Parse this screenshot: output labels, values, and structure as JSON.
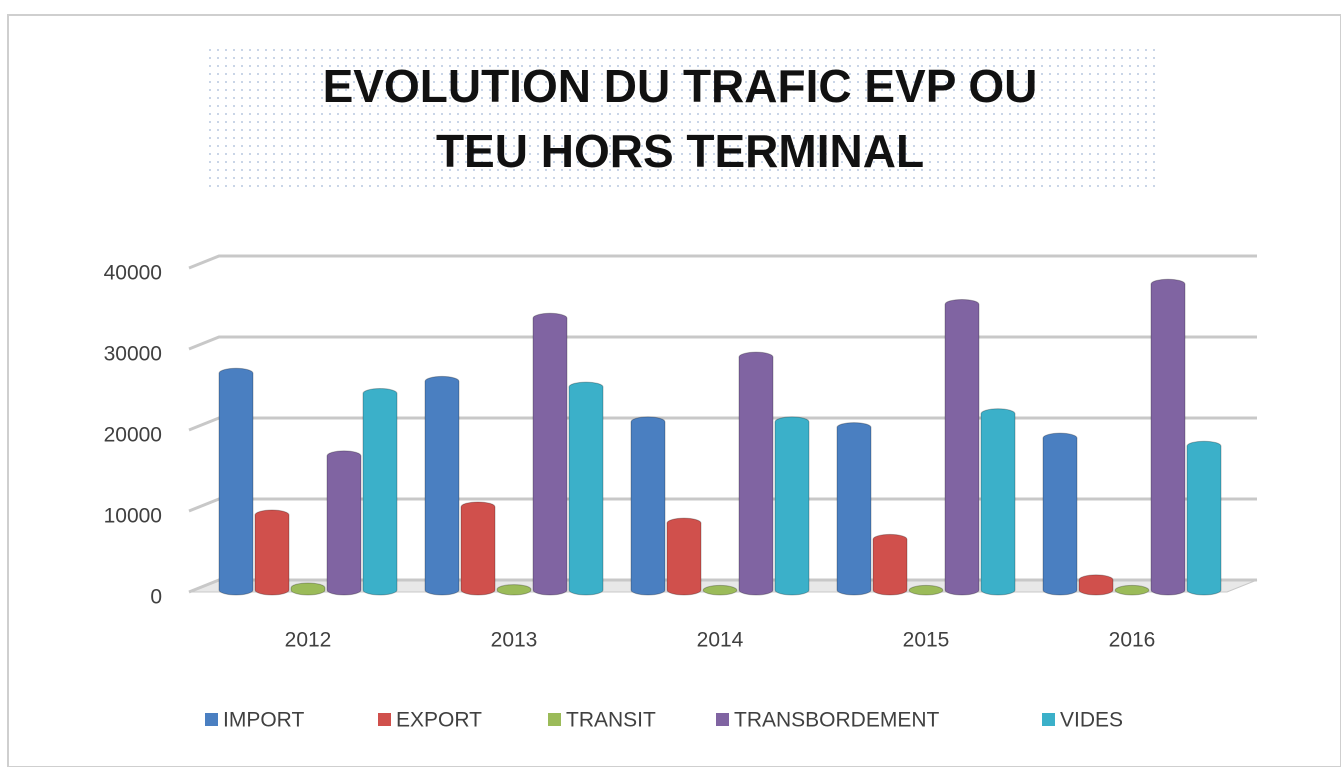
{
  "chart_data": {
    "type": "bar",
    "title": [
      "EVOLUTION DU TRAFIC EVP OU",
      "TEU HORS TERMINAL"
    ],
    "categories": [
      "2012",
      "2013",
      "2014",
      "2015",
      "2016"
    ],
    "series": [
      {
        "name": "IMPORT",
        "color": "#4a7fc1",
        "values": [
          27000,
          26000,
          21000,
          20300,
          19000
        ]
      },
      {
        "name": "EXPORT",
        "color": "#d0504c",
        "values": [
          9500,
          10500,
          8500,
          6500,
          1500
        ]
      },
      {
        "name": "TRANSIT",
        "color": "#9bbb59",
        "values": [
          500,
          300,
          200,
          200,
          200
        ]
      },
      {
        "name": "TRANSBORDEMENT",
        "color": "#8064a2",
        "values": [
          16800,
          33800,
          29000,
          35500,
          38000
        ]
      },
      {
        "name": "VIDES",
        "color": "#3bb0c9",
        "values": [
          24500,
          25300,
          21000,
          22000,
          18000
        ]
      }
    ],
    "ylim": [
      0,
      40000
    ],
    "yticks": [
      0,
      10000,
      20000,
      30000,
      40000
    ],
    "grid": true,
    "legend": "bottom"
  }
}
